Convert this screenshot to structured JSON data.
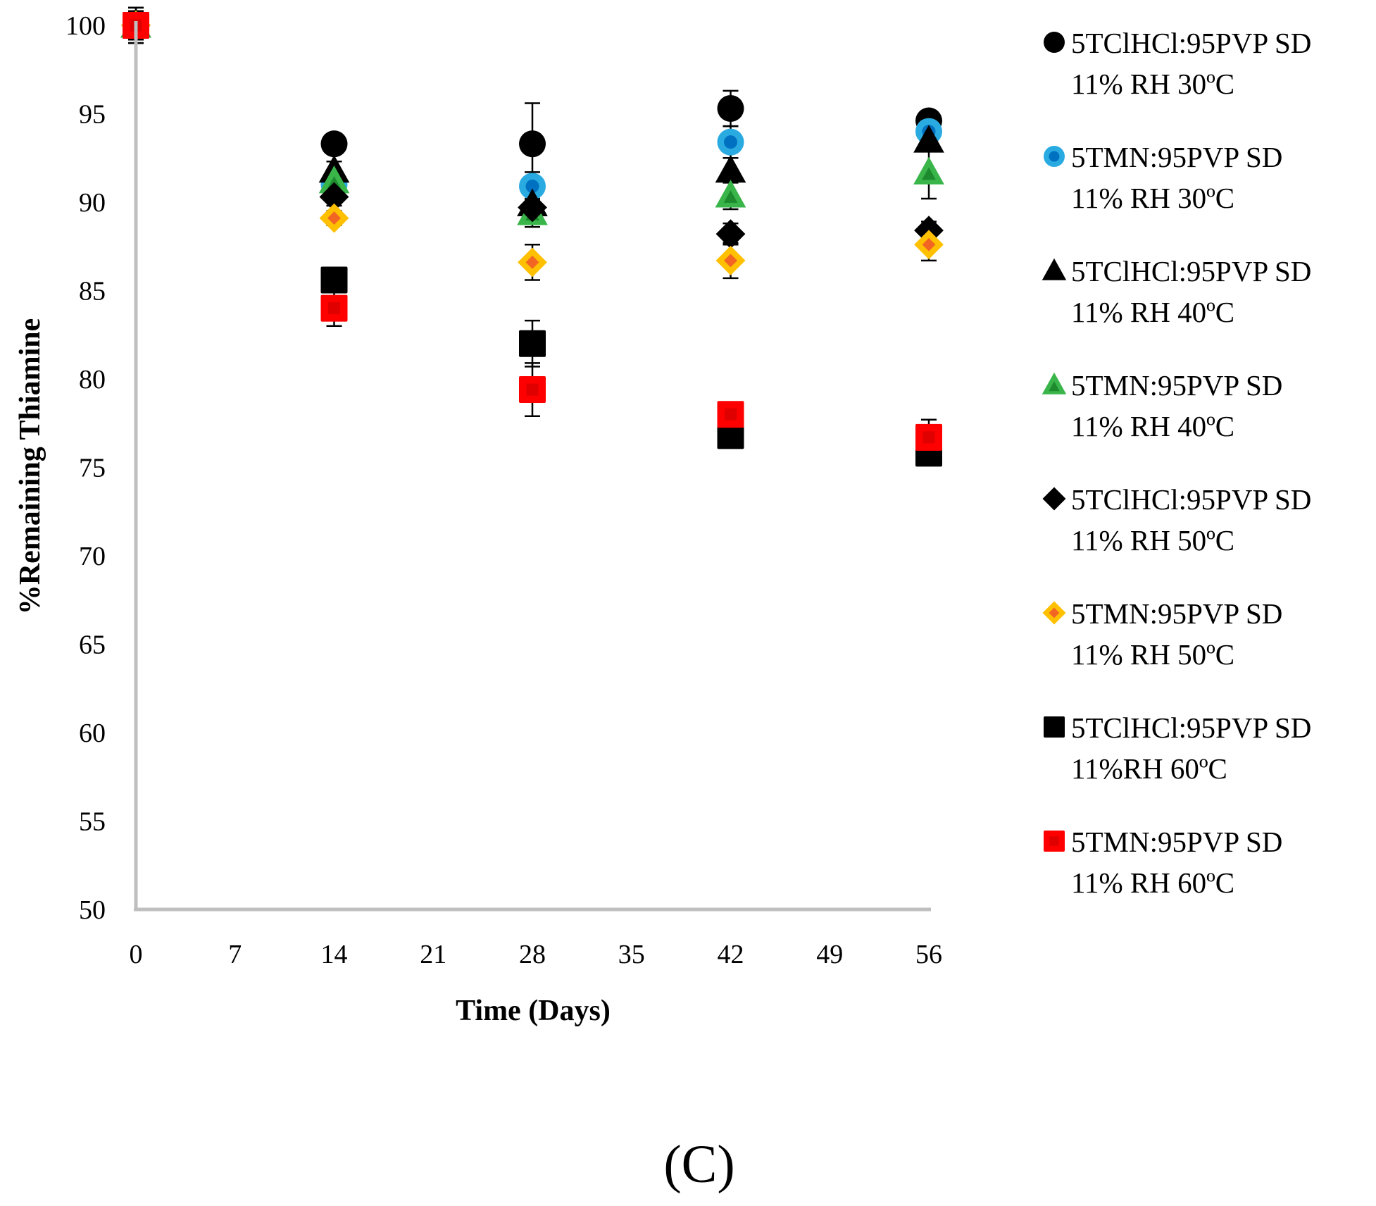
{
  "chart_data": {
    "type": "scatter",
    "panel_label": "(C)",
    "xlabel": "Time (Days)",
    "ylabel": "%Remaining Thiamine",
    "xlim": [
      0,
      56
    ],
    "ylim": [
      50,
      100
    ],
    "x_ticks": [
      0,
      7,
      14,
      21,
      28,
      35,
      42,
      49,
      56
    ],
    "y_ticks": [
      50,
      55,
      60,
      65,
      70,
      75,
      80,
      85,
      90,
      95,
      100
    ],
    "grid": false,
    "legend_position": "right",
    "x": [
      0,
      14,
      28,
      42,
      56
    ],
    "series": [
      {
        "name_line1": "5TClHCl:95PVP SD",
        "name_line2": "11% RH 30ºC",
        "marker": "circle",
        "color": "#000000",
        "inner_color": "#000000",
        "values": [
          100,
          93.3,
          93.3,
          95.3,
          94.6
        ],
        "errors": [
          1.0,
          0.5,
          2.3,
          1.0,
          0.5
        ]
      },
      {
        "name_line1": "5TMN:95PVP SD",
        "name_line2": "11% RH 30ºC",
        "marker": "circle",
        "color": "#29abe2",
        "inner_color": "#0070c0",
        "values": [
          100,
          91.0,
          90.9,
          93.4,
          94.0
        ],
        "errors": [
          0.8,
          0.5,
          0.8,
          0.9,
          0.5
        ]
      },
      {
        "name_line1": "5TClHCl:95PVP SD",
        "name_line2": "11% RH 40ºC",
        "marker": "triangle",
        "color": "#000000",
        "inner_color": "#000000",
        "values": [
          100,
          91.8,
          89.9,
          91.8,
          93.5
        ],
        "errors": [
          0.8,
          0.5,
          1.0,
          0.7,
          0.6
        ]
      },
      {
        "name_line1": "5TMN:95PVP SD",
        "name_line2": "11% RH 40ºC",
        "marker": "triangle",
        "color": "#3ab54a",
        "inner_color": "#1d8a2e",
        "values": [
          100,
          91.2,
          89.4,
          90.4,
          91.7
        ],
        "errors": [
          0.8,
          0.5,
          0.8,
          0.8,
          1.5
        ]
      },
      {
        "name_line1": "5TClHCl:95PVP SD",
        "name_line2": "11% RH 50ºC",
        "marker": "diamond",
        "color": "#000000",
        "inner_color": "#000000",
        "values": [
          100,
          90.3,
          89.7,
          88.2,
          88.4
        ],
        "errors": [
          0.8,
          0.5,
          0.9,
          0.6,
          0.5
        ]
      },
      {
        "name_line1": "5TMN:95PVP SD",
        "name_line2": "11% RH 50ºC",
        "marker": "diamond",
        "color": "#ffc000",
        "inner_color": "#f26522",
        "values": [
          100,
          89.1,
          86.6,
          86.7,
          87.6
        ],
        "errors": [
          0.8,
          0.4,
          1.0,
          1.0,
          0.9
        ]
      },
      {
        "name_line1": "5TClHCl:95PVP SD",
        "name_line2": "11%RH 60ºC",
        "marker": "square",
        "color": "#000000",
        "inner_color": "#000000",
        "values": [
          100,
          85.6,
          82.0,
          76.8,
          75.8
        ],
        "errors": [
          1.0,
          0.6,
          1.3,
          0.5,
          0.5
        ]
      },
      {
        "name_line1": "5TMN:95PVP SD",
        "name_line2": "11% RH 60ºC",
        "marker": "square",
        "color": "#ff0000",
        "inner_color": "#e00000",
        "values": [
          100,
          84.0,
          79.4,
          78.0,
          76.7
        ],
        "errors": [
          0.8,
          1.0,
          1.5,
          0.6,
          1.0
        ]
      }
    ]
  }
}
